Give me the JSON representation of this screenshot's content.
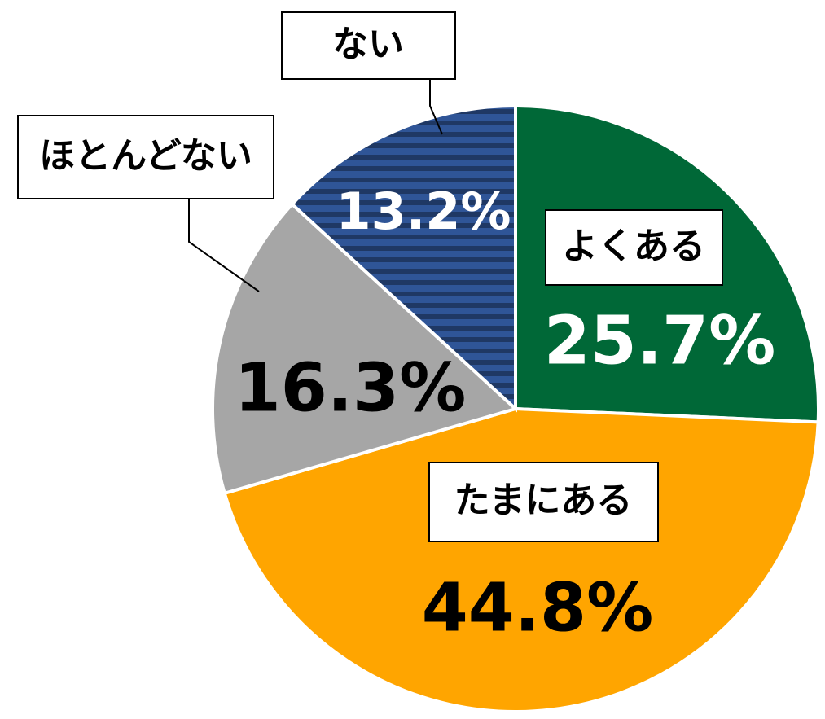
{
  "chart_data": {
    "type": "pie",
    "categories": [
      "よくある",
      "たまにある",
      "ほとんどない",
      "ない"
    ],
    "values": [
      25.7,
      44.8,
      16.3,
      13.2
    ],
    "value_labels": [
      "25.7%",
      "44.8%",
      "16.3%",
      "13.2%"
    ],
    "colors": [
      "#006837",
      "#FFA500",
      "#A6A6A6",
      "#2F5597"
    ]
  }
}
